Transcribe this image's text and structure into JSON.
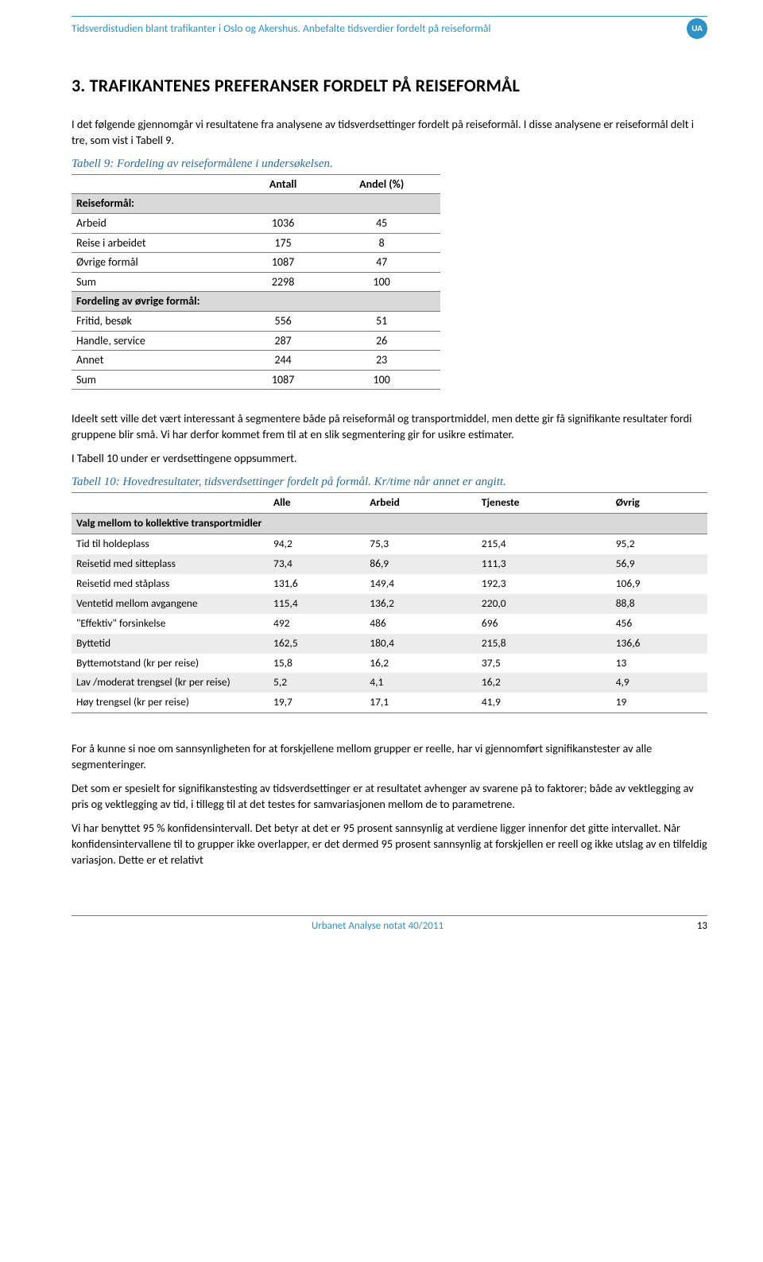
{
  "header": {
    "text": "Tidsverdistudien blant trafikanter i Oslo og Akershus. Anbefalte tidsverdier fordelt på reiseformål",
    "badge": "UA"
  },
  "section_title": "3. TRAFIKANTENES PREFERANSER FORDELT PÅ REISEFORMÅL",
  "intro_p1": "I det følgende gjennomgår vi resultatene fra analysene av tidsverdsettinger fordelt på reiseformål. I disse analysene er reiseformål delt i tre, som vist i Tabell 9.",
  "table9": {
    "caption": "Tabell 9: Fordeling av reiseformålene i undersøkelsen.",
    "headers": [
      "",
      "Antall",
      "Andel (%)"
    ],
    "section1_label": "Reiseformål:",
    "rows1": [
      {
        "label": "Arbeid",
        "antall": "1036",
        "andel": "45"
      },
      {
        "label": "Reise i arbeidet",
        "antall": "175",
        "andel": "8"
      },
      {
        "label": "Øvrige formål",
        "antall": "1087",
        "andel": "47"
      },
      {
        "label": "Sum",
        "antall": "2298",
        "andel": "100"
      }
    ],
    "section2_label": "Fordeling av øvrige formål:",
    "rows2": [
      {
        "label": "Fritid, besøk",
        "antall": "556",
        "andel": "51"
      },
      {
        "label": "Handle, service",
        "antall": "287",
        "andel": "26"
      },
      {
        "label": "Annet",
        "antall": "244",
        "andel": "23"
      },
      {
        "label": "Sum",
        "antall": "1087",
        "andel": "100"
      }
    ]
  },
  "mid_p1": "Ideelt sett ville det vært interessant å segmentere både på reiseformål og transportmiddel, men dette gir få signifikante resultater fordi gruppene blir små. Vi har derfor kommet frem til at en slik segmentering gir for usikre estimater.",
  "mid_p2": "I Tabell 10 under er verdsettingene oppsummert.",
  "table10": {
    "caption": "Tabell 10: Hovedresultater, tidsverdsettinger fordelt på formål. Kr/time når annet er angitt.",
    "headers": [
      "",
      "Alle",
      "Arbeid",
      "Tjeneste",
      "Øvrig"
    ],
    "section_label": "Valg mellom to kollektive transportmidler",
    "rows": [
      {
        "label": "Tid til holdeplass",
        "v": [
          "94,2",
          "75,3",
          "215,4",
          "95,2"
        ],
        "zebra": false
      },
      {
        "label": "Reisetid med sitteplass",
        "v": [
          "73,4",
          "86,9",
          "111,3",
          "56,9"
        ],
        "zebra": true
      },
      {
        "label": "Reisetid med ståplass",
        "v": [
          "131,6",
          "149,4",
          "192,3",
          "106,9"
        ],
        "zebra": false
      },
      {
        "label": "Ventetid mellom avgangene",
        "v": [
          "115,4",
          "136,2",
          "220,0",
          "88,8"
        ],
        "zebra": true
      },
      {
        "label": "\"Effektiv\" forsinkelse",
        "v": [
          "492",
          "486",
          "696",
          "456"
        ],
        "zebra": false
      },
      {
        "label": "Byttetid",
        "v": [
          "162,5",
          "180,4",
          "215,8",
          "136,6"
        ],
        "zebra": true
      },
      {
        "label": "Byttemotstand (kr per reise)",
        "v": [
          "15,8",
          "16,2",
          "37,5",
          "13"
        ],
        "zebra": false
      },
      {
        "label": "Lav /moderat trengsel (kr per reise)",
        "v": [
          "5,2",
          "4,1",
          "16,2",
          "4,9"
        ],
        "zebra": true
      },
      {
        "label": "Høy trengsel (kr per reise)",
        "v": [
          "19,7",
          "17,1",
          "41,9",
          "19"
        ],
        "zebra": false
      }
    ]
  },
  "para_a": "For å kunne si noe om sannsynligheten for at forskjellene mellom grupper er reelle, har vi gjennomført signifikanstester av alle segmenteringer.",
  "para_b": "Det som er spesielt for signifikanstesting av tidsverdsettinger er at resultatet avhenger av svarene på to faktorer; både av vektlegging av pris og vektlegging av tid, i tillegg til at det testes for samvariasjonen mellom de to parametrene.",
  "para_c": "Vi har benyttet 95 % konfidensintervall. Det betyr at det er 95 prosent sannsynlig at verdiene ligger innenfor det gitte intervallet. Når konfidensintervallene til to grupper ikke overlapper, er det dermed 95 prosent sannsynlig at forskjellen er reell og ikke utslag av en tilfeldig variasjon. Dette er et relativt",
  "footer": {
    "text": "Urbanet Analyse notat 40/2011",
    "page": "13"
  },
  "colors": {
    "brand": "#2f92c6",
    "grey_header": "#d9d9d9",
    "zebra": "#ececec",
    "border": "#7a7a7a"
  }
}
